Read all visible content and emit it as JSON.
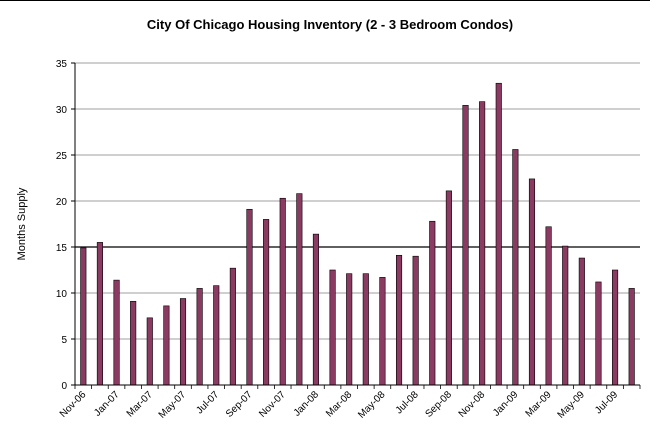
{
  "chart_data": {
    "type": "bar",
    "title": "City Of Chicago Housing Inventory (2 - 3 Bedroom Condos)",
    "xlabel": "",
    "ylabel": "Months Supply",
    "ylim": [
      0,
      35
    ],
    "yticks": [
      0,
      5,
      10,
      15,
      20,
      25,
      30,
      35
    ],
    "grid": true,
    "legend": "none",
    "bar_color": "#8B3A62",
    "bar_border_color": "#000000",
    "categories": [
      "Nov-06",
      "Dec-06",
      "Jan-07",
      "Feb-07",
      "Mar-07",
      "Apr-07",
      "May-07",
      "Jun-07",
      "Jul-07",
      "Aug-07",
      "Sep-07",
      "Oct-07",
      "Nov-07",
      "Dec-07",
      "Jan-08",
      "Feb-08",
      "Mar-08",
      "Apr-08",
      "May-08",
      "Jun-08",
      "Jul-08",
      "Aug-08",
      "Sep-08",
      "Oct-08",
      "Nov-08",
      "Dec-08",
      "Jan-09",
      "Feb-09",
      "Mar-09",
      "Apr-09",
      "May-09",
      "Jun-09",
      "Jul-09",
      "Aug-09"
    ],
    "tick_labels": [
      "Nov-06",
      "Jan-07",
      "Mar-07",
      "May-07",
      "Jul-07",
      "Sep-07",
      "Nov-07",
      "Jan-08",
      "Mar-08",
      "May-08",
      "Jul-08",
      "Sep-08",
      "Nov-08",
      "Jan-09",
      "Mar-09",
      "May-09",
      "Jul-09"
    ],
    "values": [
      14.9,
      15.5,
      11.4,
      9.1,
      7.3,
      8.6,
      9.4,
      10.5,
      10.8,
      12.7,
      19.1,
      18.0,
      20.3,
      20.8,
      16.4,
      12.5,
      12.1,
      12.1,
      11.7,
      14.1,
      14.0,
      17.8,
      21.1,
      30.4,
      30.8,
      32.8,
      25.6,
      22.4,
      17.2,
      15.1,
      13.8,
      11.2,
      12.5,
      10.5
    ]
  }
}
